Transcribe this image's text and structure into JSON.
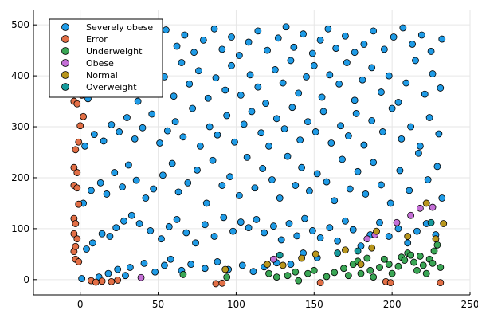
{
  "chart_data": {
    "type": "scatter",
    "title": "",
    "xlabel": "",
    "ylabel": "",
    "xlim": [
      -30,
      250
    ],
    "ylim": [
      -30,
      530
    ],
    "xticks": [
      0,
      50,
      100,
      150,
      200,
      250
    ],
    "yticks": [
      0,
      100,
      200,
      300,
      400,
      500
    ],
    "grid": true,
    "legend_position": "top-left",
    "series": [
      {
        "name": "Severely obese",
        "color": "#1f9be6",
        "points": [
          [
            1,
            2
          ],
          [
            12,
            5
          ],
          [
            18,
            12
          ],
          [
            24,
            20
          ],
          [
            29,
            8
          ],
          [
            32,
            24
          ],
          [
            41,
            32
          ],
          [
            48,
            15
          ],
          [
            54,
            28
          ],
          [
            58,
            40
          ],
          [
            65,
            18
          ],
          [
            71,
            30
          ],
          [
            80,
            22
          ],
          [
            88,
            35
          ],
          [
            95,
            20
          ],
          [
            104,
            28
          ],
          [
            111,
            16
          ],
          [
            118,
            25
          ],
          [
            126,
            33
          ],
          [
            135,
            30
          ],
          [
            143,
            52
          ],
          [
            152,
            43
          ],
          [
            4,
            60
          ],
          [
            8,
            72
          ],
          [
            14,
            90
          ],
          [
            19,
            85
          ],
          [
            23,
            102
          ],
          [
            28,
            115
          ],
          [
            33,
            126
          ],
          [
            38,
            110
          ],
          [
            45,
            96
          ],
          [
            52,
            80
          ],
          [
            57,
            104
          ],
          [
            62,
            118
          ],
          [
            68,
            92
          ],
          [
            74,
            72
          ],
          [
            80,
            108
          ],
          [
            86,
            85
          ],
          [
            92,
            122
          ],
          [
            98,
            95
          ],
          [
            103,
            113
          ],
          [
            108,
            102
          ],
          [
            113,
            118
          ],
          [
            118,
            92
          ],
          [
            124,
            105
          ],
          [
            129,
            78
          ],
          [
            134,
            110
          ],
          [
            139,
            86
          ],
          [
            144,
            120
          ],
          [
            149,
            96
          ],
          [
            154,
            82
          ],
          [
            160,
            102
          ],
          [
            165,
            76
          ],
          [
            170,
            115
          ],
          [
            175,
            98
          ],
          [
            180,
            66
          ],
          [
            186,
            88
          ],
          [
            192,
            112
          ],
          [
            198,
            85
          ],
          [
            204,
            100
          ],
          [
            210,
            72
          ],
          [
            216,
            95
          ],
          [
            222,
            110
          ],
          [
            228,
            88
          ],
          [
            2,
            150
          ],
          [
            7,
            175
          ],
          [
            13,
            190
          ],
          [
            17,
            168
          ],
          [
            22,
            210
          ],
          [
            27,
            182
          ],
          [
            31,
            225
          ],
          [
            36,
            195
          ],
          [
            42,
            160
          ],
          [
            47,
            178
          ],
          [
            53,
            205
          ],
          [
            59,
            228
          ],
          [
            63,
            172
          ],
          [
            69,
            190
          ],
          [
            75,
            215
          ],
          [
            81,
            150
          ],
          [
            85,
            234
          ],
          [
            91,
            185
          ],
          [
            96,
            202
          ],
          [
            102,
            165
          ],
          [
            107,
            240
          ],
          [
            112,
            180
          ],
          [
            117,
            218
          ],
          [
            123,
            196
          ],
          [
            128,
            160
          ],
          [
            133,
            242
          ],
          [
            138,
            185
          ],
          [
            142,
            220
          ],
          [
            147,
            174
          ],
          [
            152,
            208
          ],
          [
            158,
            192
          ],
          [
            163,
            155
          ],
          [
            168,
            236
          ],
          [
            173,
            178
          ],
          [
            178,
            212
          ],
          [
            183,
            168
          ],
          [
            188,
            230
          ],
          [
            193,
            186
          ],
          [
            199,
            150
          ],
          [
            205,
            214
          ],
          [
            211,
            175
          ],
          [
            217,
            248
          ],
          [
            223,
            196
          ],
          [
            229,
            222
          ],
          [
            232,
            160
          ],
          [
            3,
            262
          ],
          [
            9,
            285
          ],
          [
            15,
            272
          ],
          [
            20,
            304
          ],
          [
            25,
            290
          ],
          [
            30,
            318
          ],
          [
            35,
            276
          ],
          [
            40,
            298
          ],
          [
            46,
            325
          ],
          [
            51,
            268
          ],
          [
            56,
            292
          ],
          [
            61,
            310
          ],
          [
            66,
            280
          ],
          [
            72,
            336
          ],
          [
            77,
            262
          ],
          [
            83,
            300
          ],
          [
            88,
            284
          ],
          [
            94,
            322
          ],
          [
            99,
            270
          ],
          [
            105,
            305
          ],
          [
            110,
            330
          ],
          [
            116,
            288
          ],
          [
            121,
            262
          ],
          [
            126,
            316
          ],
          [
            131,
            296
          ],
          [
            136,
            338
          ],
          [
            141,
            274
          ],
          [
            146,
            310
          ],
          [
            151,
            290
          ],
          [
            156,
            330
          ],
          [
            161,
            268
          ],
          [
            167,
            302
          ],
          [
            172,
            282
          ],
          [
            177,
            326
          ],
          [
            182,
            264
          ],
          [
            187,
            312
          ],
          [
            194,
            290
          ],
          [
            200,
            336
          ],
          [
            206,
            276
          ],
          [
            212,
            300
          ],
          [
            218,
            262
          ],
          [
            224,
            318
          ],
          [
            230,
            286
          ],
          [
            5,
            355
          ],
          [
            10,
            380
          ],
          [
            16,
            368
          ],
          [
            21,
            400
          ],
          [
            26,
            372
          ],
          [
            32,
            392
          ],
          [
            37,
            350
          ],
          [
            43,
            418
          ],
          [
            49,
            376
          ],
          [
            54,
            398
          ],
          [
            60,
            360
          ],
          [
            65,
            426
          ],
          [
            70,
            384
          ],
          [
            76,
            410
          ],
          [
            82,
            356
          ],
          [
            87,
            396
          ],
          [
            93,
            372
          ],
          [
            97,
            420
          ],
          [
            103,
            362
          ],
          [
            109,
            402
          ],
          [
            114,
            378
          ],
          [
            119,
            346
          ],
          [
            125,
            412
          ],
          [
            130,
            386
          ],
          [
            135,
            430
          ],
          [
            140,
            366
          ],
          [
            145,
            398
          ],
          [
            150,
            420
          ],
          [
            155,
            358
          ],
          [
            160,
            402
          ],
          [
            166,
            384
          ],
          [
            171,
            426
          ],
          [
            176,
            352
          ],
          [
            181,
            392
          ],
          [
            187,
            416
          ],
          [
            193,
            368
          ],
          [
            198,
            400
          ],
          [
            204,
            348
          ],
          [
            209,
            386
          ],
          [
            215,
            430
          ],
          [
            221,
            364
          ],
          [
            226,
            404
          ],
          [
            231,
            376
          ],
          [
            7,
            440
          ],
          [
            14,
            466
          ],
          [
            20,
            452
          ],
          [
            28,
            486
          ],
          [
            34,
            460
          ],
          [
            40,
            478
          ],
          [
            47,
            442
          ],
          [
            55,
            490
          ],
          [
            62,
            458
          ],
          [
            67,
            480
          ],
          [
            73,
            446
          ],
          [
            79,
            470
          ],
          [
            86,
            492
          ],
          [
            91,
            452
          ],
          [
            97,
            476
          ],
          [
            102,
            440
          ],
          [
            108,
            466
          ],
          [
            114,
            488
          ],
          [
            120,
            450
          ],
          [
            127,
            474
          ],
          [
            132,
            496
          ],
          [
            137,
            456
          ],
          [
            143,
            482
          ],
          [
            149,
            444
          ],
          [
            154,
            470
          ],
          [
            159,
            492
          ],
          [
            164,
            454
          ],
          [
            170,
            478
          ],
          [
            176,
            446
          ],
          [
            182,
            462
          ],
          [
            188,
            488
          ],
          [
            195,
            452
          ],
          [
            201,
            476
          ],
          [
            207,
            494
          ],
          [
            213,
            462
          ],
          [
            219,
            480
          ],
          [
            225,
            448
          ],
          [
            232,
            472
          ]
        ]
      },
      {
        "name": "Error",
        "color": "#e26f46",
        "points": [
          [
            -4,
            350
          ],
          [
            -2,
            345
          ],
          [
            -1,
            370
          ],
          [
            1,
            362
          ],
          [
            0,
            302
          ],
          [
            2,
            320
          ],
          [
            -3,
            255
          ],
          [
            -1,
            270
          ],
          [
            -4,
            220
          ],
          [
            -2,
            210
          ],
          [
            -4,
            185
          ],
          [
            -2,
            180
          ],
          [
            -1,
            148
          ],
          [
            -4,
            120
          ],
          [
            -3,
            110
          ],
          [
            -4,
            90
          ],
          [
            -2,
            80
          ],
          [
            -4,
            55
          ],
          [
            -3,
            40
          ],
          [
            -1,
            35
          ],
          [
            -3,
            65
          ],
          [
            7,
            -2
          ],
          [
            10,
            -5
          ],
          [
            14,
            -3
          ],
          [
            20,
            -4
          ],
          [
            24,
            -1
          ],
          [
            87,
            -8
          ],
          [
            91,
            -7
          ],
          [
            154,
            -6
          ],
          [
            196,
            -4
          ],
          [
            199,
            -6
          ],
          [
            231,
            -6
          ]
        ]
      },
      {
        "name": "Underweight",
        "color": "#3aa655",
        "points": [
          [
            66,
            10
          ],
          [
            94,
            5
          ],
          [
            121,
            12
          ],
          [
            126,
            5
          ],
          [
            133,
            8
          ],
          [
            138,
            15
          ],
          [
            140,
            -2
          ],
          [
            146,
            12
          ],
          [
            150,
            18
          ],
          [
            158,
            6
          ],
          [
            163,
            14
          ],
          [
            169,
            22
          ],
          [
            172,
            8
          ],
          [
            175,
            30
          ],
          [
            180,
            12
          ],
          [
            186,
            18
          ],
          [
            188,
            5
          ],
          [
            192,
            24
          ],
          [
            195,
            40
          ],
          [
            198,
            30
          ],
          [
            200,
            12
          ],
          [
            204,
            26
          ],
          [
            206,
            44
          ],
          [
            208,
            38
          ],
          [
            210,
            52
          ],
          [
            212,
            48
          ],
          [
            214,
            34
          ],
          [
            216,
            18
          ],
          [
            218,
            46
          ],
          [
            220,
            28
          ],
          [
            222,
            12
          ],
          [
            224,
            40
          ],
          [
            226,
            32
          ],
          [
            227,
            56
          ],
          [
            229,
            68
          ],
          [
            231,
            24
          ],
          [
            184,
            42
          ],
          [
            178,
            36
          ]
        ]
      },
      {
        "name": "Obese",
        "color": "#c46fd6",
        "points": [
          [
            39,
            4
          ],
          [
            124,
            40
          ],
          [
            184,
            80
          ],
          [
            189,
            88
          ],
          [
            203,
            112
          ],
          [
            212,
            126
          ],
          [
            218,
            140
          ],
          [
            226,
            142
          ]
        ]
      },
      {
        "name": "Normal",
        "color": "#b8961d",
        "points": [
          [
            93,
            20
          ],
          [
            120,
            30
          ],
          [
            130,
            28
          ],
          [
            142,
            42
          ],
          [
            151,
            50
          ],
          [
            180,
            30
          ],
          [
            187,
            62
          ],
          [
            190,
            95
          ],
          [
            210,
            85
          ],
          [
            222,
            150
          ],
          [
            228,
            80
          ],
          [
            233,
            110
          ],
          [
            170,
            58
          ]
        ]
      },
      {
        "name": "Overweight",
        "color": "#159a9c",
        "points": [
          [
            128,
            48
          ],
          [
            165,
            52
          ],
          [
            178,
            56
          ],
          [
            225,
            112
          ]
        ]
      }
    ]
  }
}
